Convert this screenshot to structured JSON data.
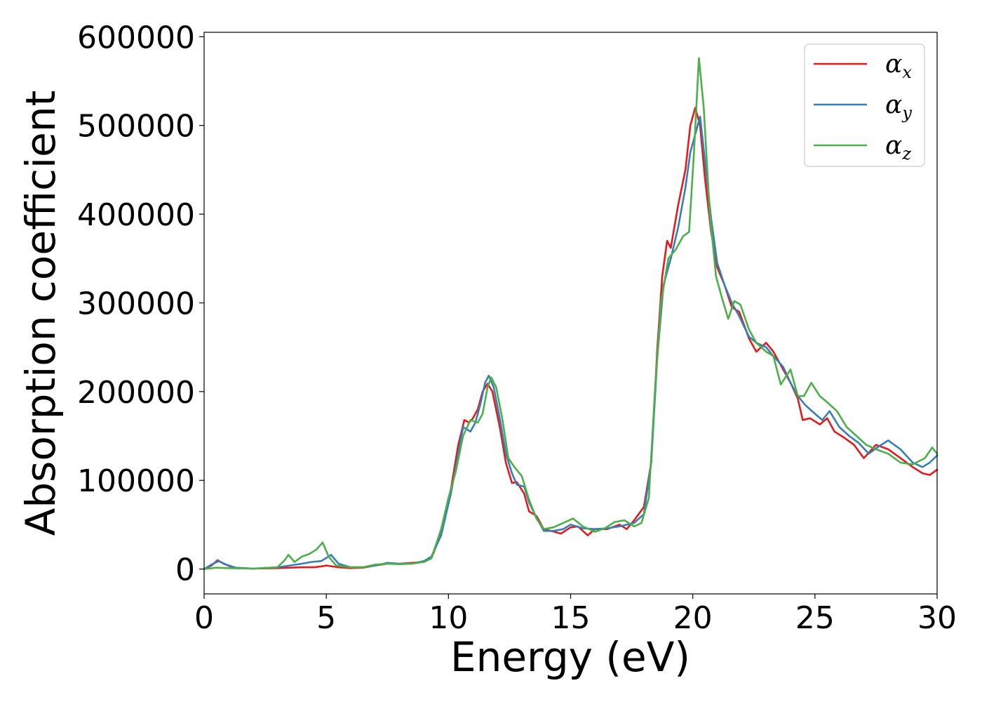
{
  "chart_data": {
    "type": "line",
    "xlabel": "Energy (eV)",
    "ylabel": "Absorption coefficient",
    "xlim": [
      0,
      30
    ],
    "ylim": [
      -28000,
      605000
    ],
    "xticks": [
      0,
      5,
      10,
      15,
      20,
      25,
      30
    ],
    "yticks": [
      0,
      100000,
      200000,
      300000,
      400000,
      500000,
      600000
    ],
    "grid": false,
    "legend_position": "top-right",
    "series": [
      {
        "name": "αx",
        "symbol": "α",
        "subscript": "x",
        "color": "#e41a1c",
        "points": [
          [
            0,
            0
          ],
          [
            0.3,
            4000
          ],
          [
            0.55,
            10000
          ],
          [
            0.8,
            6000
          ],
          [
            1.2,
            1500
          ],
          [
            2,
            500
          ],
          [
            3,
            1000
          ],
          [
            4,
            2000
          ],
          [
            4.5,
            2000
          ],
          [
            4.8,
            3000
          ],
          [
            5,
            4000
          ],
          [
            5.5,
            2000
          ],
          [
            6,
            1000
          ],
          [
            6.5,
            1500
          ],
          [
            7,
            4000
          ],
          [
            7.5,
            6000
          ],
          [
            8,
            6000
          ],
          [
            8.5,
            7000
          ],
          [
            9,
            8000
          ],
          [
            9.3,
            12000
          ],
          [
            9.7,
            40000
          ],
          [
            10.1,
            90000
          ],
          [
            10.4,
            140000
          ],
          [
            10.65,
            168000
          ],
          [
            10.85,
            165000
          ],
          [
            11.0,
            170000
          ],
          [
            11.2,
            180000
          ],
          [
            11.4,
            200000
          ],
          [
            11.6,
            209000
          ],
          [
            11.8,
            200000
          ],
          [
            12.1,
            160000
          ],
          [
            12.35,
            120000
          ],
          [
            12.6,
            97000
          ],
          [
            12.8,
            98000
          ],
          [
            13.1,
            85000
          ],
          [
            13.3,
            65000
          ],
          [
            13.6,
            60000
          ],
          [
            13.9,
            45000
          ],
          [
            14.2,
            43000
          ],
          [
            14.6,
            40000
          ],
          [
            15.0,
            47000
          ],
          [
            15.3,
            48000
          ],
          [
            15.7,
            38000
          ],
          [
            16.0,
            45000
          ],
          [
            16.5,
            45000
          ],
          [
            17.0,
            50000
          ],
          [
            17.3,
            45000
          ],
          [
            17.6,
            55000
          ],
          [
            18.0,
            70000
          ],
          [
            18.3,
            120000
          ],
          [
            18.55,
            250000
          ],
          [
            18.75,
            330000
          ],
          [
            18.95,
            370000
          ],
          [
            19.1,
            362000
          ],
          [
            19.4,
            410000
          ],
          [
            19.7,
            450000
          ],
          [
            19.9,
            500000
          ],
          [
            20.1,
            520000
          ],
          [
            20.3,
            500000
          ],
          [
            20.5,
            440000
          ],
          [
            20.75,
            380000
          ],
          [
            21.0,
            340000
          ],
          [
            21.3,
            320000
          ],
          [
            21.6,
            295000
          ],
          [
            21.9,
            290000
          ],
          [
            22.3,
            260000
          ],
          [
            22.6,
            245000
          ],
          [
            23.0,
            255000
          ],
          [
            23.3,
            245000
          ],
          [
            23.7,
            225000
          ],
          [
            24.0,
            210000
          ],
          [
            24.3,
            192000
          ],
          [
            24.5,
            168000
          ],
          [
            24.8,
            170000
          ],
          [
            25.2,
            163000
          ],
          [
            25.5,
            170000
          ],
          [
            25.8,
            155000
          ],
          [
            26.2,
            148000
          ],
          [
            26.6,
            140000
          ],
          [
            27.0,
            125000
          ],
          [
            27.5,
            140000
          ],
          [
            28.0,
            135000
          ],
          [
            28.5,
            125000
          ],
          [
            29.0,
            115000
          ],
          [
            29.4,
            108000
          ],
          [
            29.7,
            106000
          ],
          [
            30.0,
            112000
          ]
        ]
      },
      {
        "name": "αy",
        "symbol": "α",
        "subscript": "y",
        "color": "#377eb8",
        "points": [
          [
            0,
            0
          ],
          [
            0.3,
            5000
          ],
          [
            0.6,
            9000
          ],
          [
            0.9,
            5000
          ],
          [
            1.3,
            1500
          ],
          [
            2,
            500
          ],
          [
            3,
            2000
          ],
          [
            3.5,
            4000
          ],
          [
            4,
            6000
          ],
          [
            4.4,
            8000
          ],
          [
            4.8,
            9000
          ],
          [
            5.2,
            16000
          ],
          [
            5.5,
            6000
          ],
          [
            6,
            2000
          ],
          [
            6.5,
            2000
          ],
          [
            7,
            4000
          ],
          [
            7.5,
            7000
          ],
          [
            8,
            6000
          ],
          [
            8.5,
            6000
          ],
          [
            9,
            9000
          ],
          [
            9.3,
            14000
          ],
          [
            9.7,
            38000
          ],
          [
            10.1,
            85000
          ],
          [
            10.4,
            130000
          ],
          [
            10.6,
            160000
          ],
          [
            10.9,
            155000
          ],
          [
            11.1,
            165000
          ],
          [
            11.3,
            185000
          ],
          [
            11.5,
            210000
          ],
          [
            11.65,
            218000
          ],
          [
            11.85,
            205000
          ],
          [
            12.1,
            170000
          ],
          [
            12.35,
            130000
          ],
          [
            12.6,
            108000
          ],
          [
            12.8,
            95000
          ],
          [
            13.1,
            93000
          ],
          [
            13.3,
            75000
          ],
          [
            13.6,
            58000
          ],
          [
            13.9,
            43000
          ],
          [
            14.3,
            43000
          ],
          [
            14.7,
            45000
          ],
          [
            15.0,
            50000
          ],
          [
            15.5,
            46000
          ],
          [
            16.0,
            45000
          ],
          [
            16.5,
            46000
          ],
          [
            17.0,
            48000
          ],
          [
            17.3,
            50000
          ],
          [
            17.6,
            52000
          ],
          [
            18.0,
            62000
          ],
          [
            18.3,
            120000
          ],
          [
            18.55,
            240000
          ],
          [
            18.8,
            320000
          ],
          [
            19.1,
            350000
          ],
          [
            19.4,
            385000
          ],
          [
            19.7,
            430000
          ],
          [
            19.9,
            470000
          ],
          [
            20.1,
            490000
          ],
          [
            20.3,
            510000
          ],
          [
            20.5,
            460000
          ],
          [
            20.75,
            395000
          ],
          [
            21.0,
            345000
          ],
          [
            21.3,
            320000
          ],
          [
            21.6,
            300000
          ],
          [
            21.9,
            285000
          ],
          [
            22.3,
            262000
          ],
          [
            22.6,
            255000
          ],
          [
            23.0,
            250000
          ],
          [
            23.3,
            240000
          ],
          [
            23.7,
            228000
          ],
          [
            24.0,
            210000
          ],
          [
            24.3,
            195000
          ],
          [
            24.6,
            185000
          ],
          [
            25.0,
            175000
          ],
          [
            25.3,
            168000
          ],
          [
            25.6,
            178000
          ],
          [
            26.0,
            160000
          ],
          [
            26.4,
            150000
          ],
          [
            26.8,
            142000
          ],
          [
            27.2,
            130000
          ],
          [
            27.6,
            138000
          ],
          [
            28.0,
            145000
          ],
          [
            28.5,
            135000
          ],
          [
            29.0,
            120000
          ],
          [
            29.4,
            115000
          ],
          [
            29.7,
            120000
          ],
          [
            30.0,
            128000
          ]
        ]
      },
      {
        "name": "αz",
        "symbol": "α",
        "subscript": "z",
        "color": "#4daf4a",
        "points": [
          [
            0,
            0
          ],
          [
            0.5,
            1500
          ],
          [
            1,
            1000
          ],
          [
            2,
            500
          ],
          [
            3,
            2000
          ],
          [
            3.3,
            10000
          ],
          [
            3.45,
            16000
          ],
          [
            3.7,
            8000
          ],
          [
            4.0,
            14000
          ],
          [
            4.3,
            17000
          ],
          [
            4.6,
            22000
          ],
          [
            4.85,
            30000
          ],
          [
            5.1,
            14000
          ],
          [
            5.4,
            4000
          ],
          [
            6,
            2000
          ],
          [
            6.5,
            2000
          ],
          [
            7,
            5000
          ],
          [
            7.5,
            6000
          ],
          [
            8,
            5500
          ],
          [
            8.5,
            6000
          ],
          [
            9,
            8000
          ],
          [
            9.3,
            12000
          ],
          [
            9.7,
            45000
          ],
          [
            10.0,
            80000
          ],
          [
            10.3,
            110000
          ],
          [
            10.6,
            150000
          ],
          [
            10.9,
            168000
          ],
          [
            11.2,
            165000
          ],
          [
            11.4,
            175000
          ],
          [
            11.6,
            205000
          ],
          [
            11.75,
            216000
          ],
          [
            11.95,
            205000
          ],
          [
            12.2,
            170000
          ],
          [
            12.45,
            125000
          ],
          [
            12.7,
            115000
          ],
          [
            13.0,
            105000
          ],
          [
            13.3,
            78000
          ],
          [
            13.6,
            57000
          ],
          [
            13.9,
            45000
          ],
          [
            14.3,
            47000
          ],
          [
            14.7,
            52000
          ],
          [
            15.1,
            57000
          ],
          [
            15.5,
            48000
          ],
          [
            16.0,
            42000
          ],
          [
            16.4,
            46000
          ],
          [
            16.8,
            53000
          ],
          [
            17.2,
            55000
          ],
          [
            17.6,
            48000
          ],
          [
            17.9,
            52000
          ],
          [
            18.2,
            80000
          ],
          [
            18.45,
            200000
          ],
          [
            18.7,
            300000
          ],
          [
            19.0,
            350000
          ],
          [
            19.3,
            360000
          ],
          [
            19.6,
            375000
          ],
          [
            19.85,
            380000
          ],
          [
            20.05,
            470000
          ],
          [
            20.25,
            576000
          ],
          [
            20.45,
            520000
          ],
          [
            20.7,
            400000
          ],
          [
            20.95,
            330000
          ],
          [
            21.2,
            305000
          ],
          [
            21.45,
            282000
          ],
          [
            21.7,
            302000
          ],
          [
            21.95,
            298000
          ],
          [
            22.3,
            270000
          ],
          [
            22.6,
            255000
          ],
          [
            23.0,
            245000
          ],
          [
            23.3,
            240000
          ],
          [
            23.6,
            208000
          ],
          [
            24.0,
            225000
          ],
          [
            24.3,
            195000
          ],
          [
            24.55,
            195000
          ],
          [
            24.85,
            210000
          ],
          [
            25.2,
            195000
          ],
          [
            25.5,
            188000
          ],
          [
            25.9,
            178000
          ],
          [
            26.3,
            160000
          ],
          [
            26.7,
            150000
          ],
          [
            27.1,
            140000
          ],
          [
            27.5,
            135000
          ],
          [
            28.0,
            130000
          ],
          [
            28.5,
            120000
          ],
          [
            29.0,
            118000
          ],
          [
            29.5,
            125000
          ],
          [
            29.8,
            137000
          ],
          [
            30.0,
            130000
          ]
        ]
      }
    ]
  }
}
